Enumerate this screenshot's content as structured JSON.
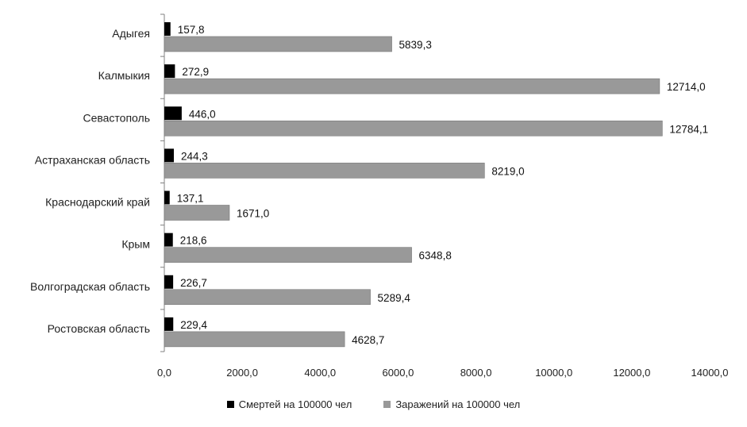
{
  "chart_data": {
    "type": "bar",
    "orientation": "horizontal",
    "categories": [
      "Адыгея",
      "Калмыкия",
      "Севастополь",
      "Астраханская область",
      "Краснодарский край",
      "Крым",
      "Волгоградская область",
      "Ростовская область"
    ],
    "series": [
      {
        "name": "Смертей на 100000 чел",
        "color": "#000000",
        "values": [
          157.8,
          272.9,
          446.0,
          244.3,
          137.1,
          218.6,
          226.7,
          229.4
        ],
        "labels": [
          "157,8",
          "272,9",
          "446,0",
          "244,3",
          "137,1",
          "218,6",
          "226,7",
          "229,4"
        ]
      },
      {
        "name": "Заражений на 100000 чел",
        "color": "#999999",
        "values": [
          5839.3,
          12714.0,
          12784.1,
          8219.0,
          1671.0,
          6348.8,
          5289.4,
          4628.7
        ],
        "labels": [
          "5839,3",
          "12714,0",
          "12784,1",
          "8219,0",
          "1671,0",
          "6348,8",
          "5289,4",
          "4628,7"
        ]
      }
    ],
    "xlim": [
      0,
      14000
    ],
    "xticks": [
      0,
      2000,
      4000,
      6000,
      8000,
      10000,
      12000,
      14000
    ],
    "xtick_labels": [
      "0,0",
      "2000,0",
      "4000,0",
      "6000,0",
      "8000,0",
      "10000,0",
      "12000,0",
      "14000,0"
    ],
    "legend_position": "bottom",
    "grid": false
  }
}
